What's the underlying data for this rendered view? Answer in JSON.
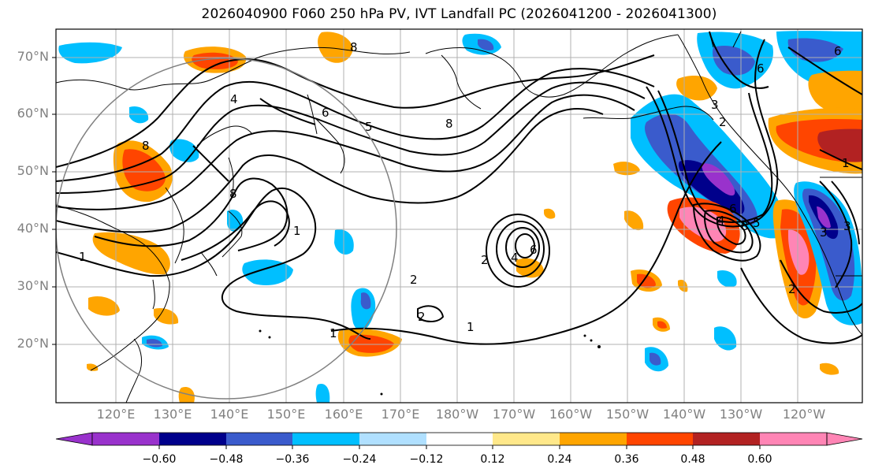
{
  "title": "2026040900 F060 250 hPa PV, IVT Landfall PC (2026041200 - 2026041300)",
  "lat_labels": [
    "70°N",
    "60°N",
    "50°N",
    "40°N",
    "30°N",
    "20°N"
  ],
  "lon_labels": [
    "120°E",
    "130°E",
    "140°E",
    "150°E",
    "160°E",
    "170°E",
    "180°W",
    "170°W",
    "160°W",
    "150°W",
    "140°W",
    "130°W",
    "120°W"
  ],
  "colorbar": {
    "ticks": [
      "−0.60",
      "−0.48",
      "−0.36",
      "−0.24",
      "−0.12",
      "0.12",
      "0.24",
      "0.36",
      "0.48",
      "0.60"
    ],
    "colors": [
      "#9932cc",
      "#00008b",
      "#3a5bcc",
      "#00bfff",
      "#b0e0ff",
      "#ffffff",
      "#ffe88a",
      "#ffa500",
      "#ff4500",
      "#b22222",
      "#ff85b5"
    ]
  },
  "contour_labels": [
    "4",
    "6",
    "8",
    "8",
    "8",
    "5",
    "2",
    "4",
    "6",
    "1",
    "1",
    "2",
    "1",
    "8",
    "6",
    "6",
    "3",
    "2",
    "8",
    "4",
    "6",
    "5",
    "3",
    "3",
    "2",
    "1",
    "1",
    "2"
  ]
}
